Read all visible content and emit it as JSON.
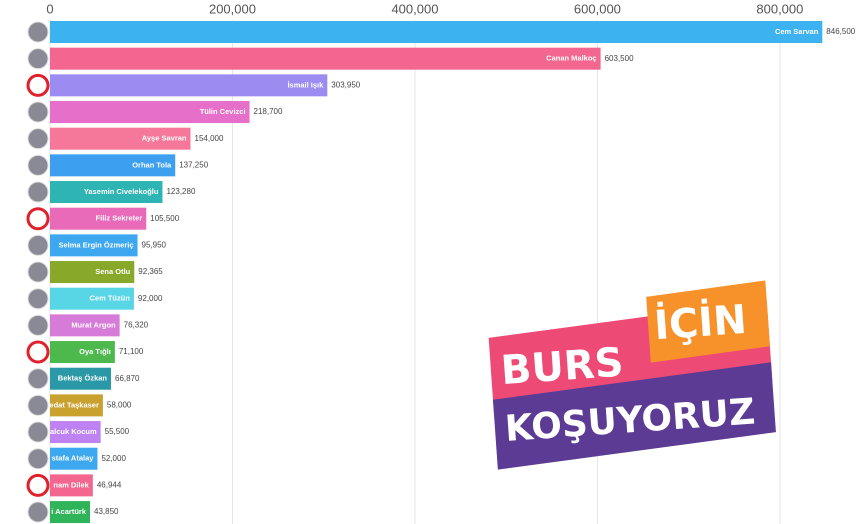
{
  "chart_data": {
    "type": "bar",
    "orientation": "horizontal",
    "categories": [
      "Cem Sarvan",
      "Canan Malkoç",
      "İsmail Işık",
      "Tülin Cevizci",
      "Ayşe Savran",
      "Orhan Tola",
      "Yasemin Civelekoğlu",
      "Filiz Sekreter",
      "Selma Ergin Özmeriç",
      "Sena Otlu",
      "Cem Tüzün",
      "Murat Argon",
      "Oya Tığlı",
      "Bektaş Özkan",
      "edat Taşkaser",
      "alcuk Kocum",
      "stafa Atalay",
      "nam Dilek",
      "i Acartürk"
    ],
    "values": [
      846500,
      603500,
      303950,
      218700,
      154000,
      137250,
      123280,
      105500,
      95950,
      92365,
      92000,
      76320,
      71100,
      66870,
      58000,
      55500,
      52000,
      46944,
      43850
    ],
    "value_labels": [
      "846,500",
      "603,500",
      "303,950",
      "218,700",
      "154,000",
      "137,250",
      "123,280",
      "105,500",
      "95,950",
      "92,365",
      "92,000",
      "76,320",
      "71,100",
      "66,870",
      "58,000",
      "55,500",
      "52,000",
      "46,944",
      "43,850"
    ],
    "colors": [
      "#3db2f0",
      "#f2668f",
      "#9c8cf2",
      "#e56fc9",
      "#f5789a",
      "#3d9ff0",
      "#2fb4b4",
      "#e96ab8",
      "#3da8f0",
      "#88a82a",
      "#58d6e6",
      "#d77bd9",
      "#4db84b",
      "#2a98a6",
      "#c9a12f",
      "#bf82f2",
      "#3da8f0",
      "#f2668f",
      "#2fb45a"
    ],
    "xlim": [
      0,
      890000
    ],
    "xticks": [
      0,
      {
        "value": 200000,
        "label": "200,000"
      },
      {
        "value": 400000,
        "label": "400,000"
      },
      {
        "value": 600000,
        "label": "600,000"
      },
      {
        "value": 800000,
        "label": "800,000"
      }
    ],
    "grid": true
  },
  "logo": {
    "line1": "BURS",
    "line1_box": "İÇİN",
    "line2": "KOŞUYORUZ"
  }
}
